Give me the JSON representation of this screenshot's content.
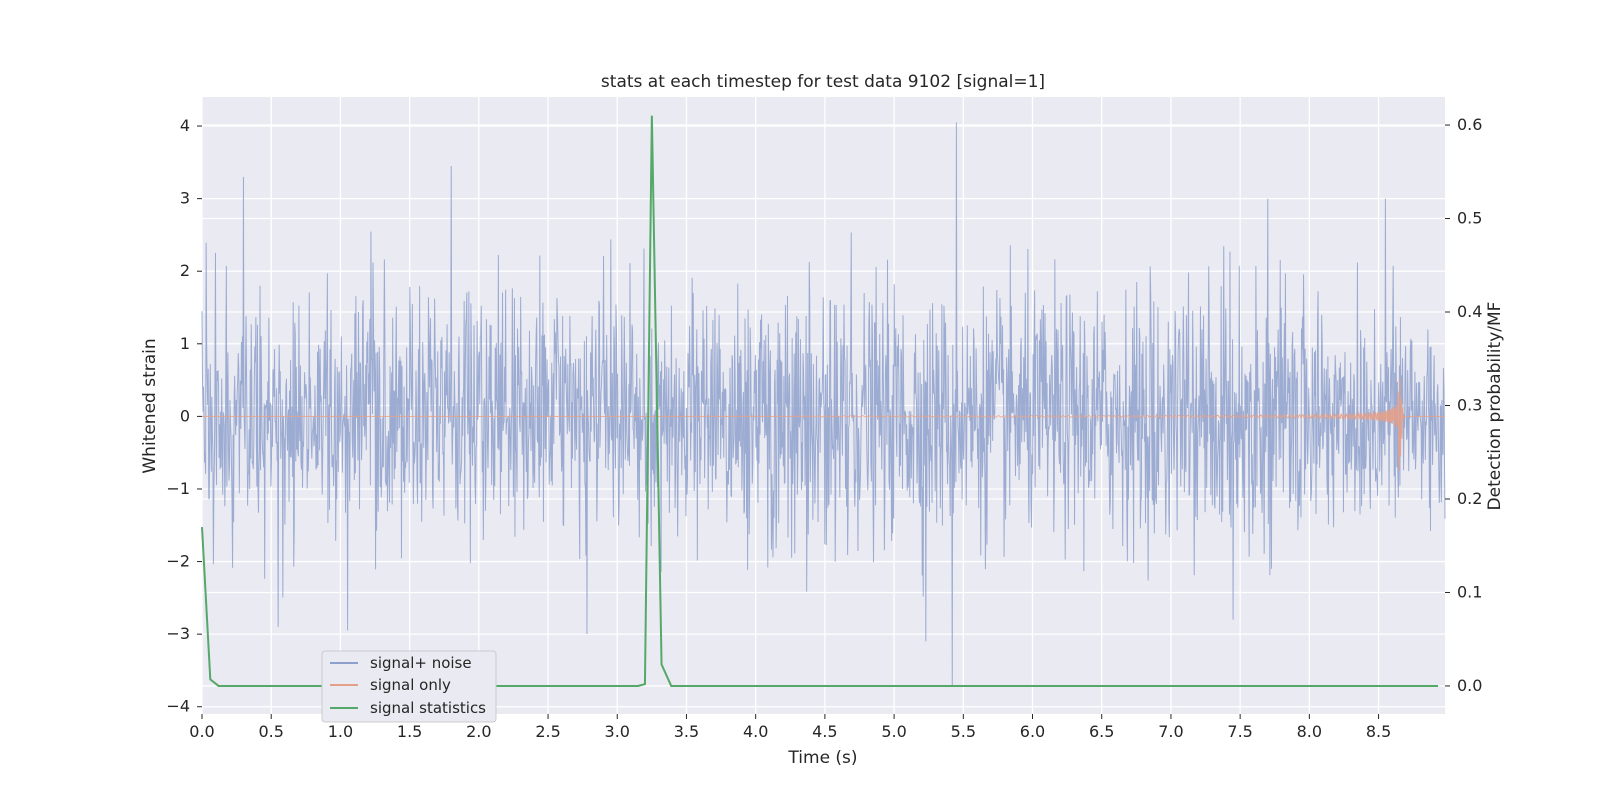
{
  "chart_data": {
    "type": "line",
    "title": "stats at each timestep for test data 9102 [signal=1]",
    "xlabel": "Time (s)",
    "ylabel": "Whitened strain",
    "y2label": "Detection probability/MF",
    "xlim": [
      0.0,
      8.98
    ],
    "ylim": [
      -4.1,
      4.4
    ],
    "y2lim": [
      -0.03,
      0.63
    ],
    "x_ticks": [
      "0.0",
      "0.5",
      "1.0",
      "1.5",
      "2.0",
      "2.5",
      "3.0",
      "3.5",
      "4.0",
      "4.5",
      "5.0",
      "5.5",
      "6.0",
      "6.5",
      "7.0",
      "7.5",
      "8.0",
      "8.5"
    ],
    "y_ticks": [
      "4",
      "3",
      "2",
      "1",
      "0",
      "−1",
      "−2",
      "−3",
      "−4"
    ],
    "y2_ticks": [
      "0.6",
      "0.5",
      "0.4",
      "0.3",
      "0.2",
      "0.1",
      "0.0"
    ],
    "grid": true,
    "legend_position": "lower-left",
    "series": [
      {
        "name": "signal+ noise",
        "axis": "left",
        "color": "#8da0cb",
        "description_values": {
          "typical_amplitude": 1.1,
          "max_spikes": [
            [
              0.3,
              3.3
            ],
            [
              1.8,
              3.45
            ],
            [
              5.45,
              4.05
            ],
            [
              7.7,
              3.0
            ],
            [
              8.55,
              3.0
            ]
          ],
          "min_spikes": [
            [
              0.55,
              -2.9
            ],
            [
              1.05,
              -2.95
            ],
            [
              2.78,
              -3.0
            ],
            [
              5.23,
              -3.1
            ],
            [
              5.42,
              -3.7
            ],
            [
              7.45,
              -2.8
            ]
          ]
        }
      },
      {
        "name": "signal only",
        "axis": "left",
        "color": "#e5a088",
        "description_values": {
          "chirp_start": 4.3,
          "chirp_peak_time": 8.65,
          "chirp_peak_amplitude": 0.82
        }
      },
      {
        "name": "signal statistics",
        "axis": "right",
        "color": "#55a868",
        "x": [
          0.0,
          0.06,
          0.12,
          0.2,
          1.0,
          2.0,
          3.0,
          3.15,
          3.2,
          3.25,
          3.32,
          3.39,
          3.45,
          4.0,
          5.0,
          6.0,
          7.0,
          8.0,
          8.93
        ],
        "values": [
          0.17,
          0.007,
          0.0,
          0.0,
          0.0,
          0.0,
          0.0,
          0.0,
          0.002,
          0.61,
          0.023,
          0.0,
          0.0,
          0.0,
          0.0,
          0.0,
          0.0,
          0.0,
          0.0
        ]
      }
    ]
  }
}
